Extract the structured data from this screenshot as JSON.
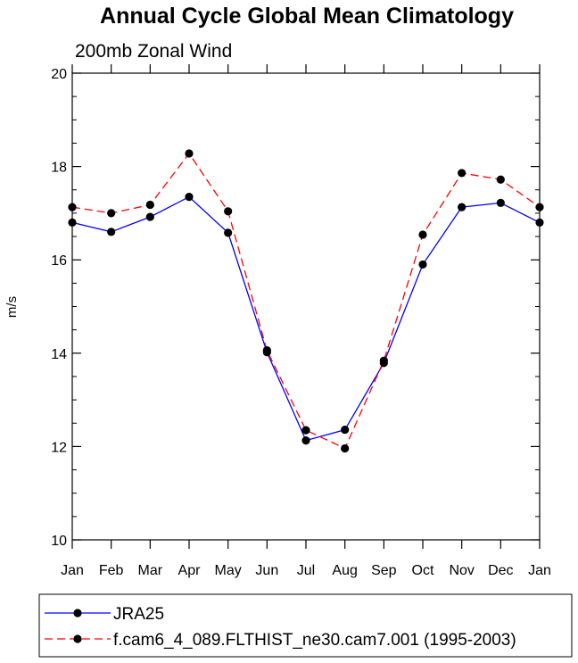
{
  "chart_data": {
    "type": "line",
    "title": "Annual Cycle Global Mean Climatology",
    "subtitle": "200mb Zonal Wind",
    "xlabel": "",
    "ylabel": "m/s",
    "categories": [
      "Jan",
      "Feb",
      "Mar",
      "Apr",
      "May",
      "Jun",
      "Jul",
      "Aug",
      "Sep",
      "Oct",
      "Nov",
      "Dec",
      "Jan"
    ],
    "ylim": [
      10,
      20
    ],
    "yticks": [
      10,
      12,
      14,
      16,
      18,
      20
    ],
    "ytick_labels": [
      "10",
      "12",
      "14",
      "16",
      "18",
      "20"
    ],
    "grid": false,
    "legend_position": "bottom",
    "series": [
      {
        "name": "JRA25",
        "color": "#0000ff",
        "dash": "solid",
        "marker": "filled-circle",
        "values": [
          16.8,
          16.6,
          16.92,
          17.35,
          16.58,
          14.02,
          12.13,
          12.36,
          13.79,
          15.9,
          17.13,
          17.22,
          16.8
        ]
      },
      {
        "name": "f.cam6_4_089.FLTHIST_ne30.cam7.001 (1995-2003)",
        "color": "#ff0000",
        "dash": "dashed",
        "marker": "filled-circle",
        "values": [
          17.13,
          17.0,
          17.18,
          18.28,
          17.04,
          14.06,
          12.35,
          11.96,
          13.84,
          16.54,
          17.86,
          17.72,
          17.13
        ]
      }
    ]
  }
}
